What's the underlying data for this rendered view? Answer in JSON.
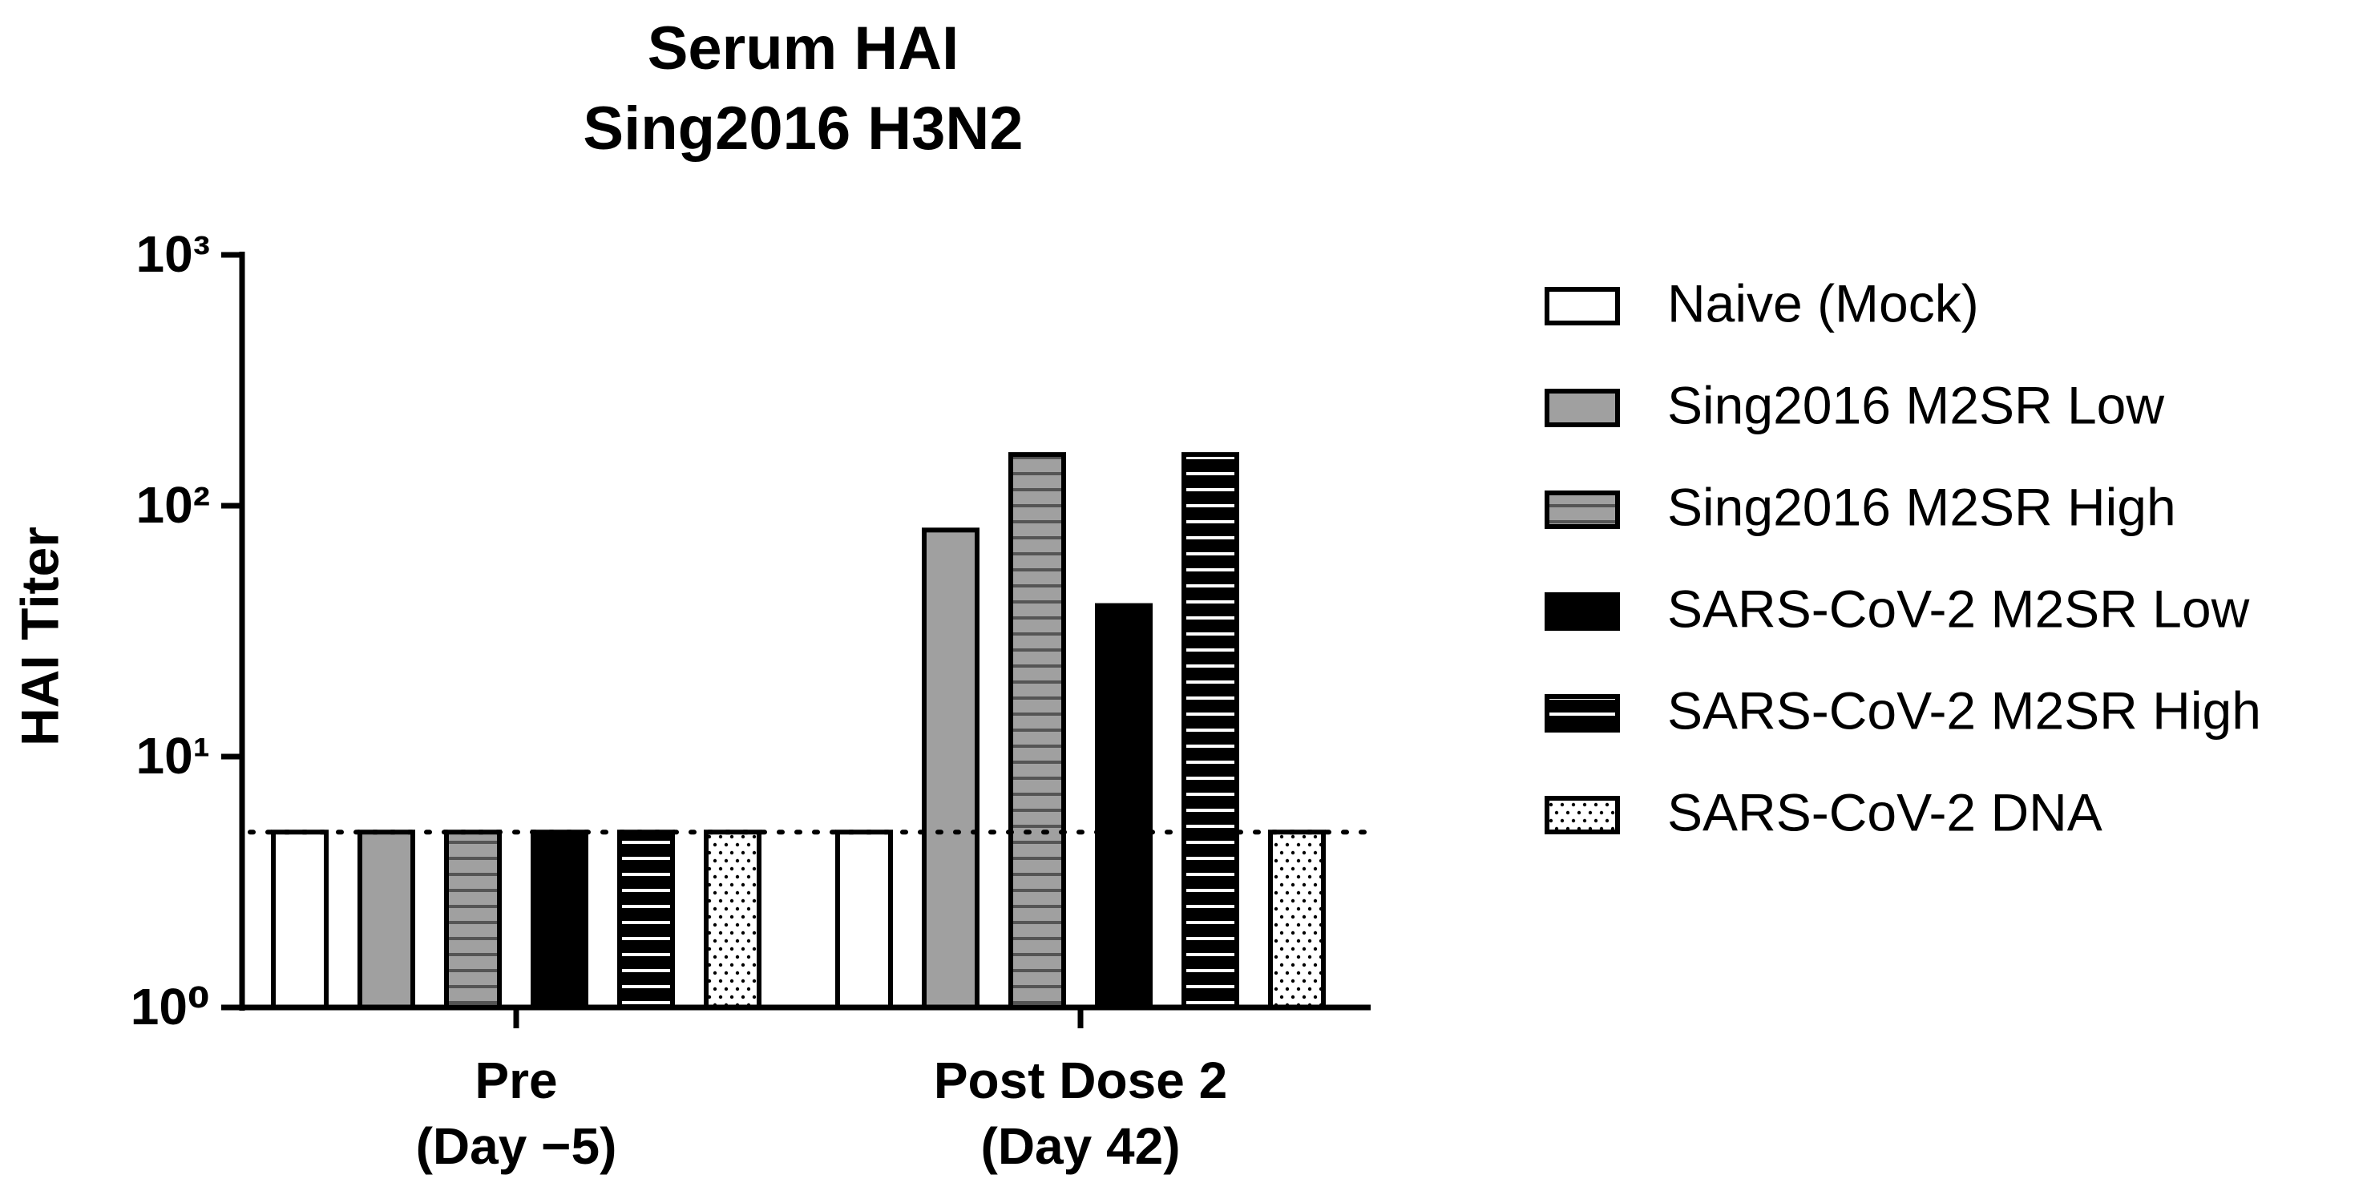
{
  "chart_data": {
    "type": "bar",
    "title": [
      "Serum HAI",
      "Sing2016 H3N2"
    ],
    "y_label": "HAI Titer",
    "log_scale": true,
    "ylim": [
      1,
      1000
    ],
    "yticks": [
      {
        "value": 1,
        "label": "10⁰"
      },
      {
        "value": 10,
        "label": "10¹"
      },
      {
        "value": 100,
        "label": "10²"
      },
      {
        "value": 1000,
        "label": "10³"
      }
    ],
    "categories": [
      [
        "Pre",
        "(Day −5)"
      ],
      [
        "Post Dose 2",
        "(Day 42)"
      ]
    ],
    "reference_line": 5,
    "series": [
      {
        "name": "Naive (Mock)",
        "color": "#ffffff",
        "pattern": "none",
        "values": [
          5,
          5
        ]
      },
      {
        "name": "Sing2016 M2SR Low",
        "color": "#a0a0a0",
        "pattern": "none",
        "values": [
          5,
          80
        ]
      },
      {
        "name": "Sing2016 M2SR High",
        "color": "#a0a0a0",
        "pattern": "hlines",
        "pattern_color": "#555555",
        "values": [
          5,
          160
        ]
      },
      {
        "name": "SARS-CoV-2 M2SR Low",
        "color": "#000000",
        "pattern": "none",
        "values": [
          5,
          40
        ]
      },
      {
        "name": "SARS-CoV-2 M2SR High",
        "color": "#000000",
        "pattern": "hlines",
        "pattern_color": "#ffffff",
        "values": [
          5,
          160
        ]
      },
      {
        "name": "SARS-CoV-2 DNA",
        "color": "#ffffff",
        "pattern": "dots",
        "pattern_color": "#000000",
        "values": [
          5,
          5
        ]
      }
    ]
  }
}
